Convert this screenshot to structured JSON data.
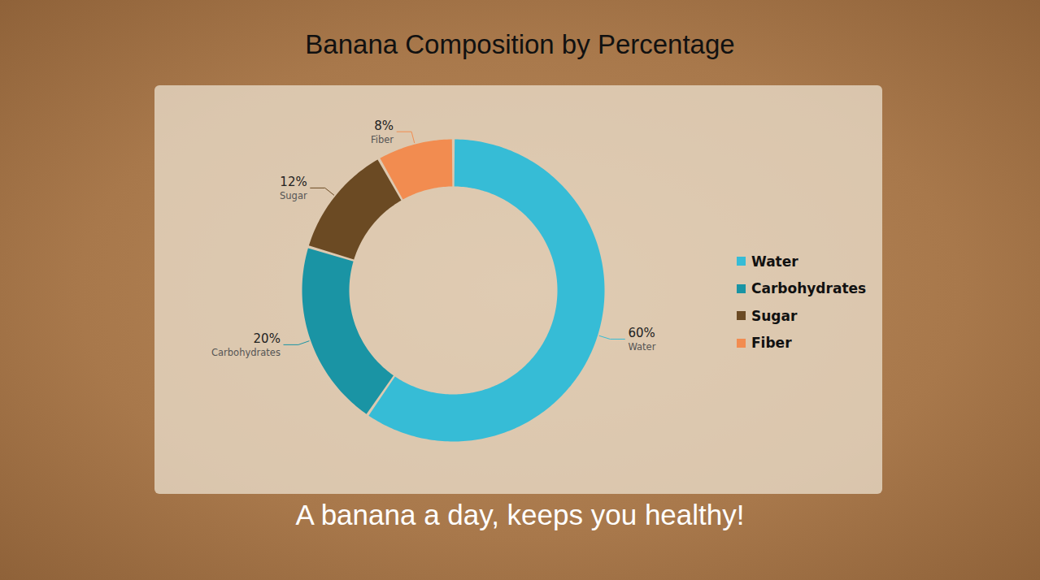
{
  "chart_data": {
    "type": "donut",
    "title": "Banana Composition by Percentage",
    "caption": "A banana a day, keeps you healthy!",
    "categories": [
      "Water",
      "Carbohydrates",
      "Sugar",
      "Fiber"
    ],
    "values": [
      60,
      20,
      12,
      8
    ],
    "value_labels": [
      "60%",
      "20%",
      "12%",
      "8%"
    ],
    "colors": [
      "#36bcd6",
      "#1a94a4",
      "#6b4a23",
      "#f28c50"
    ],
    "data_labels": true,
    "legend": "right"
  }
}
